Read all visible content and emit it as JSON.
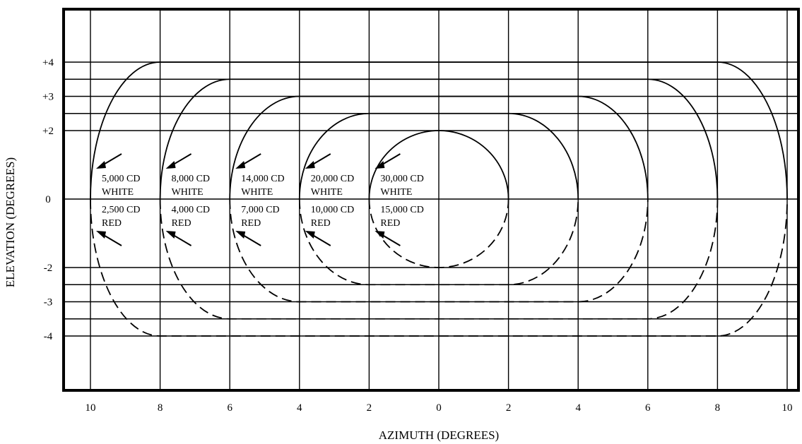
{
  "chart_data": {
    "type": "diagram",
    "xlabel": "AZIMUTH (DEGREES)",
    "ylabel": "ELEVATION (DEGREES)",
    "x_ticks": [
      "10",
      "8",
      "6",
      "4",
      "2",
      "0",
      "2",
      "4",
      "6",
      "8",
      "10"
    ],
    "y_ticks": [
      "+4",
      "+3",
      "+2",
      "0",
      "-2",
      "-3",
      "-4"
    ],
    "xlim": [
      -10,
      10
    ],
    "ylim": [
      -4,
      4
    ],
    "contours": [
      {
        "half_width_deg": 2,
        "top_deg": 2,
        "bottom_deg": -2,
        "white": "30,000 CD",
        "white_color": "WHITE",
        "red": "15,000 CD",
        "red_color": "RED"
      },
      {
        "half_width_deg": 4,
        "top_deg": 2.5,
        "bottom_deg": -2.5,
        "white": "20,000 CD",
        "white_color": "WHITE",
        "red": "10,000 CD",
        "red_color": "RED"
      },
      {
        "half_width_deg": 6,
        "top_deg": 3,
        "bottom_deg": -3,
        "white": "14,000 CD",
        "white_color": "WHITE",
        "red": "7,000 CD",
        "red_color": "RED"
      },
      {
        "half_width_deg": 8,
        "top_deg": 3.5,
        "bottom_deg": -3.5,
        "white": "8,000 CD",
        "white_color": "WHITE",
        "red": "4,000 CD",
        "red_color": "RED"
      },
      {
        "half_width_deg": 10,
        "top_deg": 4,
        "bottom_deg": -4,
        "white": "5,000 CD",
        "white_color": "WHITE",
        "red": "2,500 CD",
        "red_color": "RED"
      }
    ],
    "legend": "white above 0 elevation (solid), red below 0 elevation (dashed)"
  }
}
